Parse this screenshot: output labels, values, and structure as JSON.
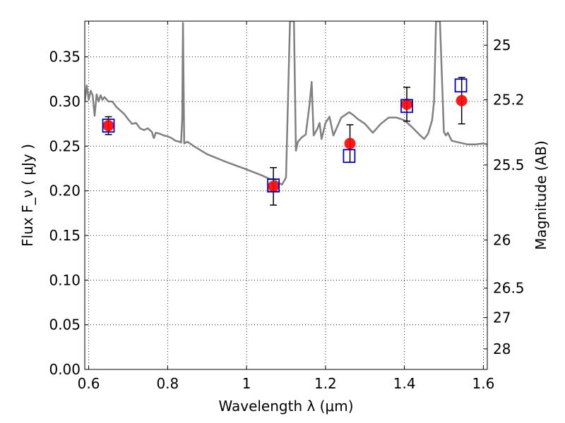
{
  "chart_data": {
    "type": "scatter",
    "xlabel": "Wavelength  λ (μm)",
    "ylabel": "Flux  F_ν  ( μJy )",
    "y2label": "Magnitude (AB)",
    "xlim": [
      0.59,
      1.61
    ],
    "ylim": [
      0.0,
      0.39
    ],
    "grid": true,
    "x_ticks": [
      0.6,
      0.8,
      1.0,
      1.2,
      1.4,
      1.6
    ],
    "x_tick_labels": [
      "0.6",
      "0.8",
      "1",
      "1.2",
      "1.4",
      "1.6"
    ],
    "y_ticks": [
      0.0,
      0.05,
      0.1,
      0.15,
      0.2,
      0.25,
      0.3,
      0.35
    ],
    "y_tick_labels": [
      "0.00",
      "0.05",
      "0.10",
      "0.15",
      "0.20",
      "0.25",
      "0.30",
      "0.35"
    ],
    "y2_ticks": [
      {
        "label": "25",
        "flux": 0.363
      },
      {
        "label": "25.2",
        "flux": 0.302
      },
      {
        "label": "25.5",
        "flux": 0.229
      },
      {
        "label": "26",
        "flux": 0.145
      },
      {
        "label": "26.5",
        "flux": 0.091
      },
      {
        "label": "27",
        "flux": 0.058
      },
      {
        "label": "28",
        "flux": 0.023
      }
    ],
    "series": [
      {
        "kind": "line",
        "color": "#808080",
        "x": [
          0.59,
          0.595,
          0.6,
          0.605,
          0.61,
          0.615,
          0.62,
          0.625,
          0.63,
          0.635,
          0.64,
          0.65,
          0.66,
          0.67,
          0.68,
          0.69,
          0.7,
          0.71,
          0.72,
          0.73,
          0.74,
          0.75,
          0.76,
          0.765,
          0.77,
          0.78,
          0.79,
          0.8,
          0.81,
          0.82,
          0.83,
          0.834,
          0.837,
          0.839,
          0.842,
          0.85,
          0.87,
          0.9,
          0.95,
          1.0,
          1.04,
          1.06,
          1.07,
          1.08,
          1.09,
          1.1,
          1.11,
          1.115,
          1.12,
          1.125,
          1.13,
          1.14,
          1.15,
          1.16,
          1.165,
          1.17,
          1.18,
          1.185,
          1.19,
          1.2,
          1.21,
          1.22,
          1.24,
          1.26,
          1.27,
          1.28,
          1.3,
          1.32,
          1.34,
          1.36,
          1.38,
          1.4,
          1.42,
          1.44,
          1.45,
          1.46,
          1.47,
          1.475,
          1.48,
          1.485,
          1.49,
          1.5,
          1.505,
          1.51,
          1.52,
          1.54,
          1.56,
          1.58,
          1.6,
          1.61
        ],
        "y": [
          0.3,
          0.318,
          0.302,
          0.312,
          0.307,
          0.284,
          0.308,
          0.3,
          0.307,
          0.302,
          0.305,
          0.3,
          0.3,
          0.294,
          0.29,
          0.286,
          0.28,
          0.275,
          0.276,
          0.27,
          0.268,
          0.27,
          0.266,
          0.259,
          0.265,
          0.264,
          0.262,
          0.261,
          0.259,
          0.256,
          0.255,
          0.254,
          0.28,
          0.388,
          0.253,
          0.255,
          0.249,
          0.241,
          0.232,
          0.224,
          0.217,
          0.213,
          0.213,
          0.209,
          0.207,
          0.215,
          0.39,
          0.39,
          0.39,
          0.245,
          0.255,
          0.26,
          0.263,
          0.298,
          0.322,
          0.262,
          0.27,
          0.276,
          0.258,
          0.276,
          0.283,
          0.262,
          0.282,
          0.288,
          0.285,
          0.281,
          0.275,
          0.265,
          0.275,
          0.282,
          0.282,
          0.279,
          0.271,
          0.262,
          0.258,
          0.264,
          0.279,
          0.3,
          0.39,
          0.39,
          0.39,
          0.266,
          0.262,
          0.265,
          0.256,
          0.254,
          0.252,
          0.252,
          0.253,
          0.252
        ]
      },
      {
        "kind": "points",
        "marker": "circle",
        "color": "#ff0000",
        "x": [
          0.65,
          1.068,
          1.262,
          1.406,
          1.545
        ],
        "y": [
          0.273,
          0.205,
          0.253,
          0.297,
          0.301
        ],
        "err": [
          0.01,
          0.021,
          0.021,
          0.019,
          0.026
        ]
      },
      {
        "kind": "points",
        "marker": "open-square",
        "color": "#0000cc",
        "x": [
          0.65,
          1.068,
          1.26,
          1.406,
          1.543
        ],
        "y": [
          0.273,
          0.206,
          0.239,
          0.295,
          0.318
        ]
      }
    ]
  }
}
